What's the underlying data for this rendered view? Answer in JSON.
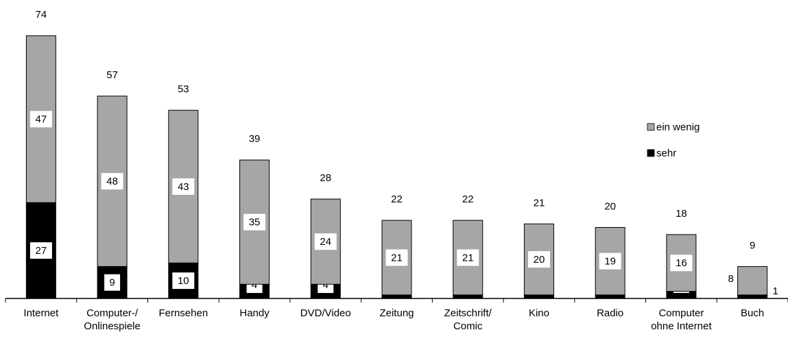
{
  "chart_data": {
    "type": "stacked_bar",
    "categories": [
      [
        "Internet"
      ],
      [
        "Computer-/",
        "Onlinespiele"
      ],
      [
        "Fernsehen"
      ],
      [
        "Handy"
      ],
      [
        "DVD/Video"
      ],
      [
        "Zeitung"
      ],
      [
        "Zeitschrift/",
        "Comic"
      ],
      [
        "Kino"
      ],
      [
        "Radio"
      ],
      [
        "Computer",
        "ohne Internet"
      ],
      [
        "Buch"
      ]
    ],
    "series": [
      {
        "name": "sehr",
        "color": "#000000",
        "values": [
          27,
          9,
          10,
          4,
          4,
          1,
          1,
          1,
          1,
          2,
          1
        ]
      },
      {
        "name": "ein wenig",
        "color": "#a6a6a6",
        "values": [
          47,
          48,
          43,
          35,
          24,
          21,
          21,
          20,
          19,
          16,
          8
        ]
      }
    ],
    "totals": [
      74,
      57,
      53,
      39,
      28,
      22,
      22,
      21,
      20,
      18,
      9
    ],
    "legend": "right"
  }
}
